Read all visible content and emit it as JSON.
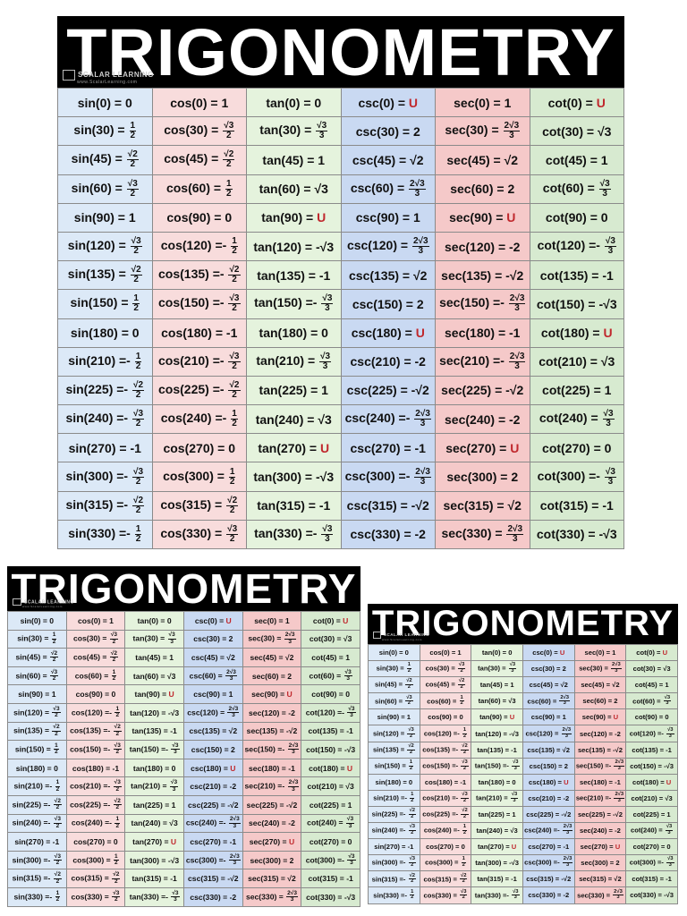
{
  "poster": {
    "title": "TRIGONOMETRY",
    "brand_name": "SCALAR LEARNING",
    "brand_url": "www.ScalarLearning.com",
    "undefined_symbol": "U",
    "column_colors": [
      "#dce9f7",
      "#f8dcdc",
      "#e5f3dd",
      "#c9d9f2",
      "#f5c9c9",
      "#d7ead0"
    ],
    "undefined_color": "#c0282d",
    "functions": [
      "sin",
      "cos",
      "tan",
      "csc",
      "sec",
      "cot"
    ],
    "rows": [
      [
        {
          "l": "sin(0) =",
          "v": "0"
        },
        {
          "l": "cos(0) =",
          "v": "1"
        },
        {
          "l": "tan(0) =",
          "v": "0"
        },
        {
          "l": "csc(0) =",
          "v": "U"
        },
        {
          "l": "sec(0) =",
          "v": "1"
        },
        {
          "l": "cot(0) =",
          "v": "U"
        }
      ],
      [
        {
          "l": "sin(30) =",
          "n": "1",
          "d": "2"
        },
        {
          "l": "cos(30) =",
          "n": "√3",
          "d": "2"
        },
        {
          "l": "tan(30) =",
          "n": "√3",
          "d": "3"
        },
        {
          "l": "csc(30) =",
          "v": "2"
        },
        {
          "l": "sec(30) =",
          "n": "2√3",
          "d": "3"
        },
        {
          "l": "cot(30) =",
          "v": "√3"
        }
      ],
      [
        {
          "l": "sin(45) =",
          "n": "√2",
          "d": "2"
        },
        {
          "l": "cos(45) =",
          "n": "√2",
          "d": "2"
        },
        {
          "l": "tan(45) =",
          "v": "1"
        },
        {
          "l": "csc(45) =",
          "v": "√2"
        },
        {
          "l": "sec(45) =",
          "v": "√2"
        },
        {
          "l": "cot(45) =",
          "v": "1"
        }
      ],
      [
        {
          "l": "sin(60) =",
          "n": "√3",
          "d": "2"
        },
        {
          "l": "cos(60) =",
          "n": "1",
          "d": "2"
        },
        {
          "l": "tan(60) =",
          "v": "√3"
        },
        {
          "l": "csc(60) =",
          "n": "2√3",
          "d": "3"
        },
        {
          "l": "sec(60) =",
          "v": "2"
        },
        {
          "l": "cot(60) =",
          "n": "√3",
          "d": "3"
        }
      ],
      [
        {
          "l": "sin(90) =",
          "v": "1"
        },
        {
          "l": "cos(90) =",
          "v": "0"
        },
        {
          "l": "tan(90) =",
          "v": "U"
        },
        {
          "l": "csc(90) =",
          "v": "1"
        },
        {
          "l": "sec(90) =",
          "v": "U"
        },
        {
          "l": "cot(90) =",
          "v": "0"
        }
      ],
      [
        {
          "l": "sin(120) =",
          "n": "√3",
          "d": "2"
        },
        {
          "l": "cos(120) =-",
          "n": "1",
          "d": "2"
        },
        {
          "l": "tan(120) =",
          "v": "-√3"
        },
        {
          "l": "csc(120) =",
          "n": "2√3",
          "d": "3"
        },
        {
          "l": "sec(120) =",
          "v": "-2"
        },
        {
          "l": "cot(120) =-",
          "n": "√3",
          "d": "3"
        }
      ],
      [
        {
          "l": "sin(135) =",
          "n": "√2",
          "d": "2"
        },
        {
          "l": "cos(135) =-",
          "n": "√2",
          "d": "2"
        },
        {
          "l": "tan(135) =",
          "v": "-1"
        },
        {
          "l": "csc(135) =",
          "v": "√2"
        },
        {
          "l": "sec(135) =",
          "v": "-√2"
        },
        {
          "l": "cot(135) =",
          "v": "-1"
        }
      ],
      [
        {
          "l": "sin(150) =",
          "n": "1",
          "d": "2"
        },
        {
          "l": "cos(150) =-",
          "n": "√3",
          "d": "2"
        },
        {
          "l": "tan(150) =-",
          "n": "√3",
          "d": "3"
        },
        {
          "l": "csc(150) =",
          "v": "2"
        },
        {
          "l": "sec(150) =-",
          "n": "2√3",
          "d": "3"
        },
        {
          "l": "cot(150) =",
          "v": "-√3"
        }
      ],
      [
        {
          "l": "sin(180) =",
          "v": "0"
        },
        {
          "l": "cos(180) =",
          "v": "-1"
        },
        {
          "l": "tan(180) =",
          "v": "0"
        },
        {
          "l": "csc(180) =",
          "v": "U"
        },
        {
          "l": "sec(180) =",
          "v": "-1"
        },
        {
          "l": "cot(180) =",
          "v": "U"
        }
      ],
      [
        {
          "l": "sin(210) =-",
          "n": "1",
          "d": "2"
        },
        {
          "l": "cos(210) =-",
          "n": "√3",
          "d": "2"
        },
        {
          "l": "tan(210) =",
          "n": "√3",
          "d": "3"
        },
        {
          "l": "csc(210) =",
          "v": "-2"
        },
        {
          "l": "sec(210) =-",
          "n": "2√3",
          "d": "3"
        },
        {
          "l": "cot(210) =",
          "v": "√3"
        }
      ],
      [
        {
          "l": "sin(225) =-",
          "n": "√2",
          "d": "2"
        },
        {
          "l": "cos(225) =-",
          "n": "√2",
          "d": "2"
        },
        {
          "l": "tan(225) =",
          "v": "1"
        },
        {
          "l": "csc(225) =",
          "v": "-√2"
        },
        {
          "l": "sec(225) =",
          "v": "-√2"
        },
        {
          "l": "cot(225) =",
          "v": "1"
        }
      ],
      [
        {
          "l": "sin(240) =-",
          "n": "√3",
          "d": "2"
        },
        {
          "l": "cos(240) =-",
          "n": "1",
          "d": "2"
        },
        {
          "l": "tan(240) =",
          "v": "√3"
        },
        {
          "l": "csc(240) =-",
          "n": "2√3",
          "d": "3"
        },
        {
          "l": "sec(240) =",
          "v": "-2"
        },
        {
          "l": "cot(240) =",
          "n": "√3",
          "d": "3"
        }
      ],
      [
        {
          "l": "sin(270) =",
          "v": "-1"
        },
        {
          "l": "cos(270) =",
          "v": "0"
        },
        {
          "l": "tan(270) =",
          "v": "U"
        },
        {
          "l": "csc(270) =",
          "v": "-1"
        },
        {
          "l": "sec(270) =",
          "v": "U"
        },
        {
          "l": "cot(270) =",
          "v": "0"
        }
      ],
      [
        {
          "l": "sin(300) =-",
          "n": "√3",
          "d": "2"
        },
        {
          "l": "cos(300) =",
          "n": "1",
          "d": "2"
        },
        {
          "l": "tan(300) =",
          "v": "-√3"
        },
        {
          "l": "csc(300) =-",
          "n": "2√3",
          "d": "3"
        },
        {
          "l": "sec(300) =",
          "v": "2"
        },
        {
          "l": "cot(300) =-",
          "n": "√3",
          "d": "3"
        }
      ],
      [
        {
          "l": "sin(315) =-",
          "n": "√2",
          "d": "2"
        },
        {
          "l": "cos(315) =",
          "n": "√2",
          "d": "2"
        },
        {
          "l": "tan(315) =",
          "v": "-1"
        },
        {
          "l": "csc(315) =",
          "v": "-√2"
        },
        {
          "l": "sec(315) =",
          "v": "√2"
        },
        {
          "l": "cot(315) =",
          "v": "-1"
        }
      ],
      [
        {
          "l": "sin(330) =-",
          "n": "1",
          "d": "2"
        },
        {
          "l": "cos(330) =",
          "n": "√3",
          "d": "2"
        },
        {
          "l": "tan(330) =-",
          "n": "√3",
          "d": "3"
        },
        {
          "l": "csc(330) =",
          "v": "-2"
        },
        {
          "l": "sec(330) =",
          "n": "2√3",
          "d": "3"
        },
        {
          "l": "cot(330) =",
          "v": "-√3"
        }
      ]
    ]
  },
  "copies": [
    {
      "id": "large"
    },
    {
      "id": "small-left"
    },
    {
      "id": "small-right"
    }
  ]
}
